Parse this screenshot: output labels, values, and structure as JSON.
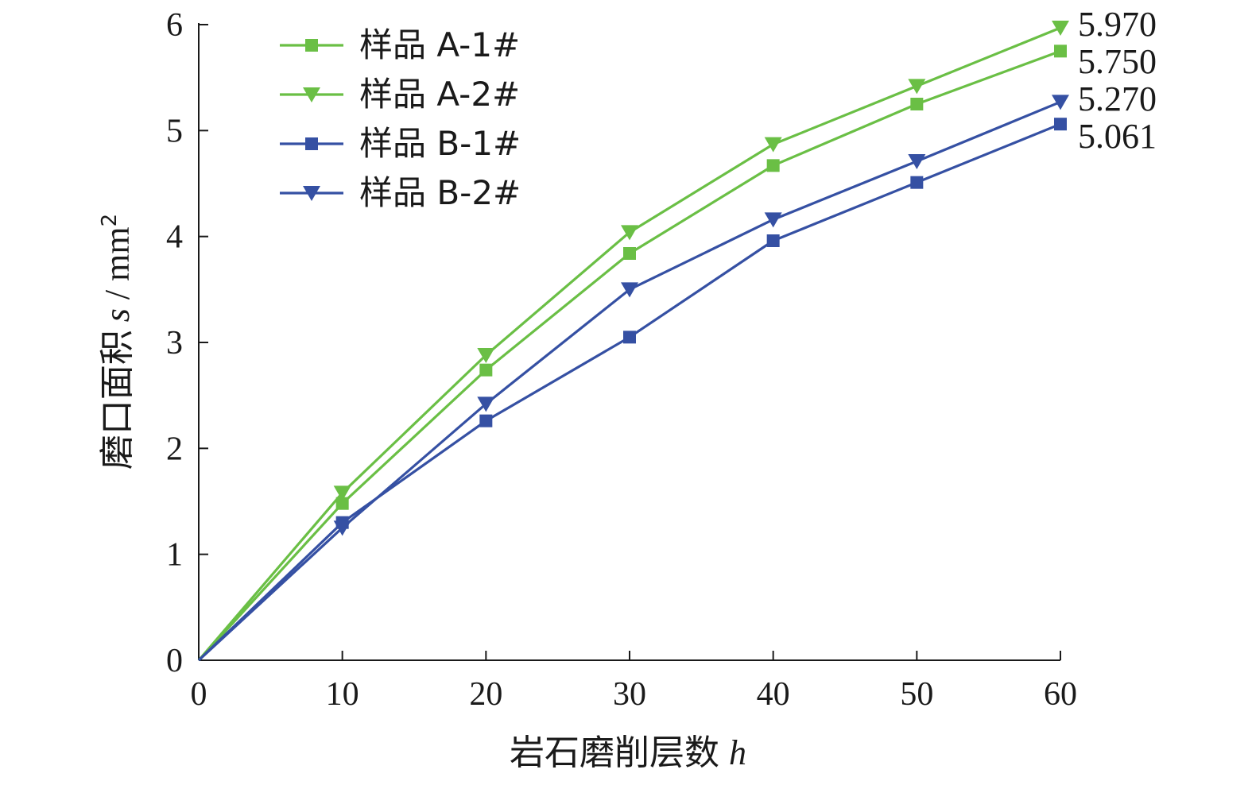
{
  "chart_data": {
    "type": "line",
    "x": [
      0,
      10,
      20,
      30,
      40,
      50,
      60
    ],
    "xlim": [
      0,
      60
    ],
    "ylim": [
      0,
      6
    ],
    "xticks": [
      "0",
      "10",
      "20",
      "30",
      "40",
      "50",
      "60"
    ],
    "yticks": [
      "0",
      "1",
      "2",
      "3",
      "4",
      "5",
      "6"
    ],
    "xlabel": "岩石磨削层数",
    "xlabel_var": "h",
    "ylabel": "磨口面积",
    "ylabel_var": "s",
    "ylabel_unit": " / mm",
    "ylabel_unit_sup": "2",
    "grid": false,
    "legend_position": "top-left",
    "series": [
      {
        "name": "样品 A-1#",
        "color": "#6abf45",
        "marker": "square",
        "values": [
          0,
          1.48,
          2.74,
          3.84,
          4.67,
          5.25,
          5.75
        ]
      },
      {
        "name": "样品 A-2#",
        "color": "#6abf45",
        "marker": "triangle-down",
        "values": [
          0,
          1.58,
          2.88,
          4.04,
          4.87,
          5.42,
          5.97
        ]
      },
      {
        "name": "样品 B-1#",
        "color": "#3550a3",
        "marker": "square",
        "values": [
          0,
          1.3,
          2.26,
          3.05,
          3.96,
          4.51,
          5.061
        ]
      },
      {
        "name": "样品 B-2#",
        "color": "#3550a3",
        "marker": "triangle-down",
        "values": [
          0,
          1.25,
          2.42,
          3.5,
          4.16,
          4.71,
          5.27
        ]
      }
    ],
    "end_labels": [
      "5.970",
      "5.750",
      "5.270",
      "5.061"
    ]
  }
}
